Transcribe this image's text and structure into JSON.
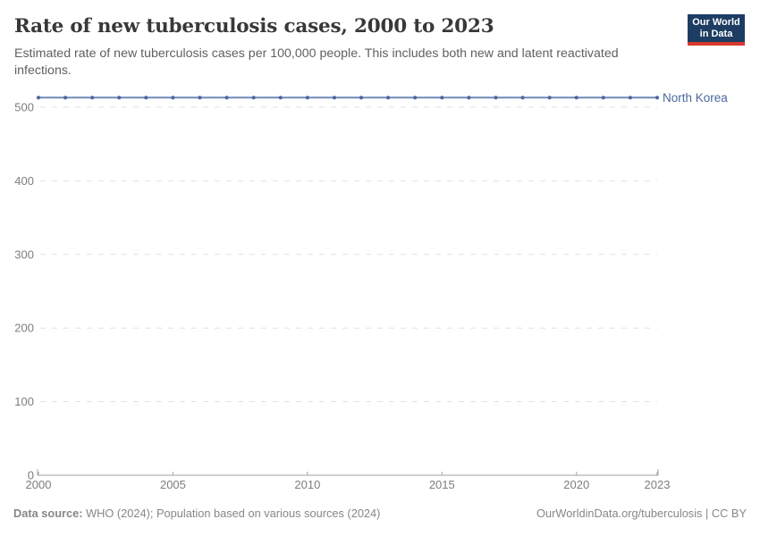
{
  "header": {
    "title": "Rate of new tuberculosis cases, 2000 to 2023",
    "subtitle": "Estimated rate of new tuberculosis cases per 100,000 people. This includes both new and latent reactivated infections."
  },
  "logo": {
    "line1": "Our World",
    "line2": "in Data",
    "bg_color": "#1d3d63",
    "accent_color": "#d6392f"
  },
  "chart_data": {
    "type": "line",
    "title": "Rate of new tuberculosis cases, 2000 to 2023",
    "xlabel": "",
    "ylabel": "",
    "x": [
      2000,
      2001,
      2002,
      2003,
      2004,
      2005,
      2006,
      2007,
      2008,
      2009,
      2010,
      2011,
      2012,
      2013,
      2014,
      2015,
      2016,
      2017,
      2018,
      2019,
      2020,
      2021,
      2022,
      2023
    ],
    "series": [
      {
        "name": "North Korea",
        "values": [
          513,
          513,
          513,
          513,
          513,
          513,
          513,
          513,
          513,
          513,
          513,
          513,
          513,
          513,
          513,
          513,
          513,
          513,
          513,
          513,
          513,
          513,
          513,
          513
        ],
        "line_color": "#7089b8",
        "marker_color": "#4a679d",
        "label_color": "#4a679d"
      }
    ],
    "xlim": [
      2000,
      2023
    ],
    "ylim": [
      0,
      500
    ],
    "yticks": [
      0,
      100,
      200,
      300,
      400,
      500
    ],
    "xticks": [
      2000,
      2005,
      2010,
      2015,
      2020,
      2023
    ],
    "grid": "horizontal-dashed",
    "legend": "end-of-line-label",
    "gridline_color": "#e1e1e1",
    "axis_color": "#a3a3a3"
  },
  "footer": {
    "source_label": "Data source:",
    "source_text": " WHO (2024); Population based on various sources (2024)",
    "link_text": "OurWorldinData.org/tuberculosis | CC BY"
  }
}
